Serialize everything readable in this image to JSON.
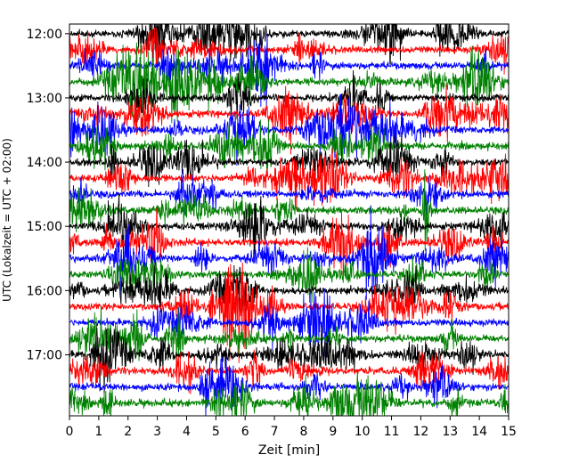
{
  "chart_data": {
    "type": "line",
    "title": "",
    "xlabel": "Zeit  [min]",
    "ylabel": "UTC (Lokalzeit = UTC + 02:00)",
    "xlim": [
      0,
      15
    ],
    "x_ticks": [
      0,
      1,
      2,
      3,
      4,
      5,
      6,
      7,
      8,
      9,
      10,
      11,
      12,
      13,
      14,
      15
    ],
    "ylim_hours": [
      11.85,
      17.95
    ],
    "y_ticks": [
      {
        "hour": 12,
        "label": "12:00"
      },
      {
        "hour": 13,
        "label": "13:00"
      },
      {
        "hour": 14,
        "label": "14:00"
      },
      {
        "hour": 15,
        "label": "15:00"
      },
      {
        "hour": 16,
        "label": "16:00"
      },
      {
        "hour": 17,
        "label": "17:00"
      }
    ],
    "trace_start_hour": 12.0,
    "trace_interval_min": 15,
    "trace_count": 24,
    "series_colors": [
      "#000000",
      "#ff0000",
      "#0000ff",
      "#008000"
    ],
    "grid": false,
    "legend": "none"
  }
}
